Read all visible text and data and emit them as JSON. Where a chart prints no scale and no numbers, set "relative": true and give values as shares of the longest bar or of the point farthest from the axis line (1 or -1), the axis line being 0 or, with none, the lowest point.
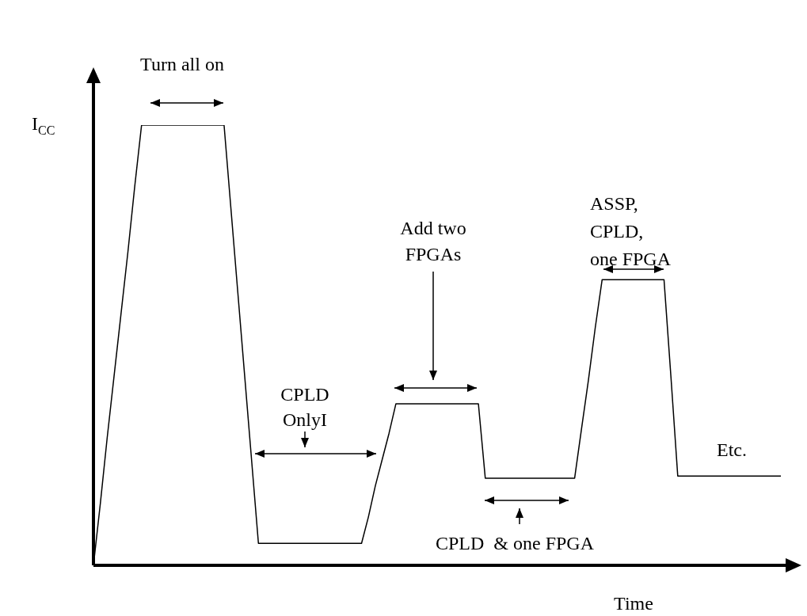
{
  "chart_data": {
    "type": "line",
    "relative": true,
    "xlabel": "Time",
    "ylabel": "I$_{CC}$",
    "tick_labels": false,
    "marker": "none",
    "legend": false,
    "categories": [
      null,
      null,
      null,
      null,
      null,
      null,
      null,
      null,
      null,
      null,
      null,
      null,
      null,
      null,
      null,
      null,
      null,
      null,
      null,
      null,
      null,
      null,
      null,
      null,
      null,
      null,
      null,
      null,
      null,
      null,
      null,
      null,
      null,
      null,
      null,
      null,
      null,
      null,
      null,
      null,
      null,
      null,
      null,
      null,
      null,
      null,
      null,
      null,
      null,
      null,
      null,
      null,
      null,
      null,
      null,
      null,
      null,
      null,
      null,
      null,
      null,
      null,
      null,
      null,
      null,
      null,
      null,
      null,
      null,
      null,
      null,
      null,
      null,
      null,
      null,
      null,
      null,
      null,
      null,
      null,
      null,
      null,
      null,
      null,
      null,
      null,
      null,
      null,
      null,
      null,
      null,
      null,
      null,
      null,
      null,
      null,
      null,
      null,
      null,
      null,
      null
    ],
    "series": [
      {
        "color": "#000000",
        "values": [
          0,
          0.14,
          0.29,
          0.43,
          0.57,
          0.71,
          0.86,
          1,
          1,
          1,
          1,
          1,
          1,
          1,
          1,
          1,
          1,
          1,
          1,
          1,
          0.81,
          0.62,
          0.43,
          0.24,
          0.05,
          0.05,
          0.05,
          0.05,
          0.05,
          0.05,
          0.05,
          0.05,
          0.05,
          0.05,
          0.05,
          0.05,
          0.05,
          0.05,
          0.05,
          0.05,
          0.11,
          0.18,
          0.24,
          0.3,
          0.367,
          0.367,
          0.367,
          0.367,
          0.367,
          0.367,
          0.367,
          0.367,
          0.367,
          0.367,
          0.367,
          0.367,
          0.367,
          0.198,
          0.198,
          0.198,
          0.198,
          0.198,
          0.198,
          0.198,
          0.198,
          0.198,
          0.198,
          0.198,
          0.198,
          0.198,
          0.198,
          0.31,
          0.42,
          0.54,
          0.649,
          0.649,
          0.649,
          0.649,
          0.649,
          0.649,
          0.649,
          0.649,
          0.649,
          0.649,
          0.43,
          0.203,
          0.203,
          0.203,
          0.203,
          0.203,
          0.203,
          0.203,
          0.203,
          0.203,
          0.203,
          0.203,
          0.203,
          0.203,
          0.203,
          0.203,
          0.203
        ]
      }
    ],
    "annotations": [
      "Turn all on",
      "CPLD\nOnlyI",
      "Add two\nFPGAs",
      "CPLD  & one FPGA",
      "ASSP,\nCPLD,\none FPGA",
      "Etc."
    ]
  }
}
